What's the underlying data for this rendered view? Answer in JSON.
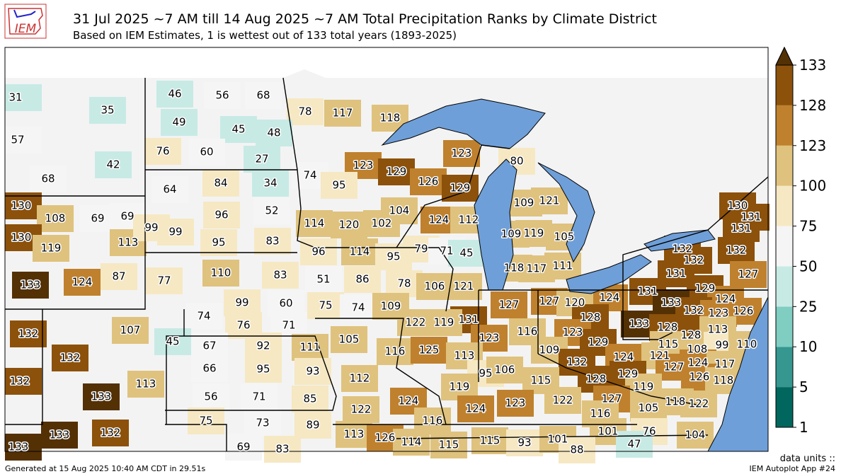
{
  "header": {
    "logo": "IEM",
    "title": "31 Jul 2025 ~7 AM till 14 Aug 2025 ~7 AM Total Precipitation Ranks by Climate District",
    "subtitle": "Based on IEM Estimates, 1 is wettest out of 133 total years (1893-2025)"
  },
  "colorbar": {
    "levels": [
      1,
      5,
      10,
      25,
      50,
      75,
      100,
      123,
      128,
      133
    ],
    "colors": [
      "#01665e",
      "#35978f",
      "#80cdc1",
      "#c7eae5",
      "#f5f5f5",
      "#f6e8c3",
      "#dfc27d",
      "#bf812d",
      "#8c510a"
    ],
    "extend_color": "#543005",
    "units_label": "data units ::"
  },
  "districts": [
    31,
    35,
    46,
    56,
    68,
    78,
    117,
    118,
    57,
    49,
    45,
    48,
    42,
    76,
    60,
    27,
    123,
    129,
    126,
    129,
    123,
    80,
    68,
    64,
    84,
    34,
    74,
    95,
    130,
    108,
    69,
    69,
    96,
    52,
    104,
    109,
    121,
    130,
    131,
    130,
    119,
    113,
    99,
    99,
    95,
    83,
    114,
    120,
    102,
    124,
    112,
    109,
    119,
    105,
    131,
    96,
    114,
    95,
    79,
    71,
    45,
    132,
    132,
    132,
    133,
    124,
    87,
    77,
    110,
    83,
    51,
    86,
    78,
    118,
    117,
    111,
    131,
    127,
    106,
    121,
    129,
    124,
    131,
    124,
    99,
    60,
    74,
    75,
    74,
    109,
    127,
    127,
    120,
    133,
    132,
    123,
    126,
    128,
    131,
    122,
    119,
    76,
    71,
    133,
    128,
    128,
    113,
    132,
    107,
    45,
    116,
    123,
    123,
    67,
    92,
    111,
    105,
    129,
    115,
    108,
    99,
    110,
    132,
    116,
    125,
    113,
    109,
    124,
    121,
    66,
    95,
    93,
    132,
    124,
    117,
    127,
    129,
    126,
    118,
    132,
    113,
    112,
    95,
    106,
    119,
    115,
    128,
    119,
    133,
    56,
    71,
    85,
    124,
    123,
    122,
    127,
    118,
    122,
    105,
    122,
    124,
    116,
    133,
    132,
    75,
    73,
    89,
    116,
    133,
    113,
    126,
    114,
    115,
    115,
    93,
    101,
    101,
    76,
    104,
    69,
    83,
    88,
    47
  ],
  "footer": {
    "generated": "Generated at 15 Aug 2025 10:40 AM CDT in 29.51s",
    "app": "IEM Autoplot App #24"
  }
}
